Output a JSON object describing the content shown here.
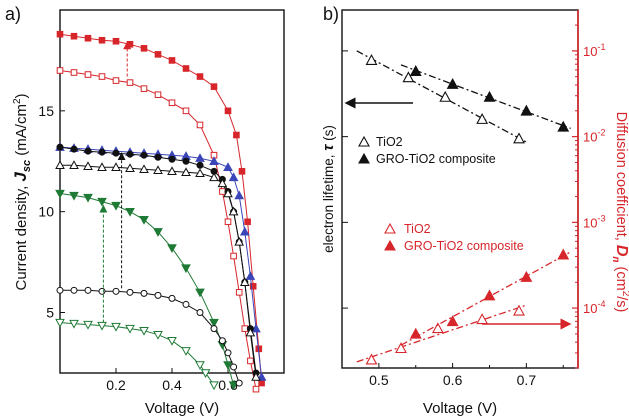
{
  "panel_a": {
    "tag": "a)",
    "ylabel_pre": "Current density, ",
    "ylabel_sym": "J",
    "ylabel_sub": "sc",
    "ylabel_unit": " (mA/cm",
    "ylabel_sup": "2",
    "ylabel_end": ")",
    "xlabel": "Voltage (V)"
  },
  "panel_b": {
    "tag": "b)",
    "ylabel_left_pre": "electron lifetime, ",
    "ylabel_left_sym": "τ",
    "ylabel_left_unit": " (s)",
    "ylabel_right_pre": "Diffusion coefficient, ",
    "ylabel_right_sym": "D",
    "ylabel_right_sub": "n",
    "ylabel_right_unit": " (cm",
    "ylabel_right_sup": "2",
    "ylabel_right_end": "/s)",
    "xlabel": "Voltage (V)",
    "legend_lifetime": [
      "TiO2",
      "GRO-TiO2 composite"
    ],
    "legend_diffusion": [
      "TiO2",
      "GRO-TiO2 composite"
    ]
  },
  "colors": {
    "red": "#d7262b",
    "blue": "#3a45b8",
    "green": "#1e7a35",
    "black": "#111111",
    "right_axis": "#d7262b"
  },
  "chart_data": [
    {
      "type": "line",
      "panel": "a",
      "xlabel": "Voltage (V)",
      "ylabel": "Current density, Jsc (mA/cm2)",
      "xlim": [
        0,
        0.8
      ],
      "ylim": [
        2,
        20
      ],
      "xticks": [
        0.2,
        0.4,
        0.6
      ],
      "yticks": [
        5,
        10,
        15
      ],
      "series": [
        {
          "color": "red",
          "marker": "square",
          "filled": true,
          "x": [
            0.0,
            0.05,
            0.1,
            0.15,
            0.2,
            0.25,
            0.3,
            0.35,
            0.4,
            0.45,
            0.5,
            0.55,
            0.6,
            0.63,
            0.65,
            0.67,
            0.69,
            0.71,
            0.72
          ],
          "y": [
            18.8,
            18.7,
            18.6,
            18.5,
            18.45,
            18.3,
            18.1,
            17.8,
            17.5,
            17.1,
            16.7,
            16.2,
            15.0,
            13.8,
            12.0,
            9.5,
            6.3,
            3.2,
            1.5
          ]
        },
        {
          "color": "red",
          "marker": "square",
          "filled": false,
          "x": [
            0.0,
            0.05,
            0.1,
            0.15,
            0.2,
            0.25,
            0.3,
            0.35,
            0.4,
            0.45,
            0.5,
            0.55,
            0.58,
            0.6,
            0.62,
            0.64,
            0.66,
            0.68,
            0.7
          ],
          "y": [
            17.0,
            16.9,
            16.8,
            16.7,
            16.5,
            16.4,
            16.1,
            15.8,
            15.4,
            15.0,
            14.3,
            12.8,
            11.0,
            9.5,
            7.8,
            6.0,
            4.2,
            2.6,
            1.2
          ]
        },
        {
          "color": "blue",
          "marker": "triangle-up",
          "filled": true,
          "x": [
            0.0,
            0.05,
            0.1,
            0.15,
            0.2,
            0.25,
            0.3,
            0.35,
            0.4,
            0.45,
            0.5,
            0.55,
            0.6,
            0.62,
            0.64,
            0.66,
            0.68,
            0.7,
            0.72
          ],
          "y": [
            13.2,
            13.15,
            13.1,
            13.05,
            13.0,
            12.95,
            12.9,
            12.85,
            12.8,
            12.75,
            12.65,
            12.5,
            12.2,
            11.7,
            10.8,
            9.0,
            6.8,
            4.2,
            1.8
          ]
        },
        {
          "color": "black",
          "marker": "circle",
          "filled": true,
          "x": [
            0.0,
            0.05,
            0.1,
            0.15,
            0.2,
            0.25,
            0.3,
            0.35,
            0.4,
            0.45,
            0.5,
            0.55,
            0.58,
            0.6,
            0.62,
            0.64,
            0.66,
            0.68,
            0.7
          ],
          "y": [
            13.2,
            13.1,
            13.0,
            12.95,
            12.9,
            12.85,
            12.8,
            12.7,
            12.6,
            12.5,
            12.3,
            12.0,
            11.6,
            11.0,
            10.0,
            8.5,
            6.5,
            4.2,
            2.0
          ]
        },
        {
          "color": "black",
          "marker": "triangle-up",
          "filled": false,
          "x": [
            0.0,
            0.05,
            0.1,
            0.15,
            0.2,
            0.25,
            0.3,
            0.35,
            0.4,
            0.45,
            0.5,
            0.55,
            0.58,
            0.6,
            0.62,
            0.64,
            0.66,
            0.68,
            0.7
          ],
          "y": [
            12.3,
            12.3,
            12.25,
            12.2,
            12.2,
            12.15,
            12.1,
            12.05,
            12.0,
            11.95,
            11.9,
            11.7,
            11.4,
            10.9,
            10.0,
            8.5,
            6.5,
            4.0,
            1.8
          ]
        },
        {
          "color": "green",
          "marker": "triangle-down",
          "filled": true,
          "x": [
            0.0,
            0.05,
            0.1,
            0.15,
            0.2,
            0.25,
            0.3,
            0.35,
            0.4,
            0.45,
            0.5,
            0.55,
            0.58,
            0.6,
            0.62
          ],
          "y": [
            10.9,
            10.8,
            10.7,
            10.5,
            10.3,
            10.0,
            9.6,
            9.0,
            8.2,
            7.2,
            6.0,
            4.5,
            3.4,
            2.4,
            1.4
          ]
        },
        {
          "color": "black",
          "marker": "circle",
          "filled": false,
          "x": [
            0.0,
            0.05,
            0.1,
            0.15,
            0.2,
            0.25,
            0.3,
            0.35,
            0.4,
            0.45,
            0.5,
            0.55,
            0.58,
            0.6,
            0.62,
            0.64
          ],
          "y": [
            6.1,
            6.1,
            6.1,
            6.05,
            6.05,
            6.0,
            5.95,
            5.85,
            5.7,
            5.4,
            5.0,
            4.2,
            3.6,
            3.0,
            2.3,
            1.5
          ]
        },
        {
          "color": "green",
          "marker": "triangle-down",
          "filled": false,
          "x": [
            0.0,
            0.05,
            0.1,
            0.15,
            0.2,
            0.25,
            0.3,
            0.35,
            0.4,
            0.45,
            0.5,
            0.52,
            0.55
          ],
          "y": [
            4.5,
            4.45,
            4.4,
            4.35,
            4.3,
            4.2,
            4.1,
            3.9,
            3.6,
            3.1,
            2.4,
            2.0,
            1.4
          ]
        }
      ],
      "arrows": [
        {
          "x": 0.24,
          "from": 16.7,
          "to": 18.4,
          "color": "red"
        },
        {
          "x": 0.22,
          "from": 6.2,
          "to": 12.9,
          "color": "black"
        },
        {
          "x": 0.155,
          "from": 4.5,
          "to": 10.3,
          "color": "green"
        }
      ]
    },
    {
      "type": "scatter",
      "panel": "b",
      "xlabel": "Voltage (V)",
      "xlim": [
        0.45,
        0.77
      ],
      "xticks": [
        0.5,
        0.6,
        0.7
      ],
      "left_axis": {
        "label": "electron lifetime, τ (s)",
        "scale": "log",
        "ticks": []
      },
      "right_axis": {
        "label": "Diffusion coefficient, Dn (cm2/s)",
        "scale": "log",
        "ylim": [
          2e-05,
          0.3
        ],
        "tick_labels": [
          "10-4",
          "10-3",
          "10-2",
          "10-1"
        ]
      },
      "series": [
        {
          "name": "TiO2",
          "axis": "left",
          "color": "black",
          "marker": "triangle-up",
          "filled": false,
          "x": [
            0.49,
            0.54,
            0.59,
            0.64,
            0.69
          ],
          "y": [
            0.078,
            0.049,
            0.029,
            0.016,
            0.0095
          ]
        },
        {
          "name": "GRO-TiO2 composite",
          "axis": "left",
          "color": "black",
          "marker": "triangle-up",
          "filled": true,
          "x": [
            0.55,
            0.6,
            0.65,
            0.7,
            0.75
          ],
          "y": [
            0.058,
            0.041,
            0.029,
            0.02,
            0.013
          ]
        },
        {
          "name": "TiO2",
          "axis": "right",
          "color": "red",
          "marker": "triangle-up",
          "filled": false,
          "x": [
            0.49,
            0.53,
            0.58,
            0.64,
            0.69
          ],
          "y": [
            2.5e-05,
            3.4e-05,
            5.8e-05,
            7.4e-05,
            9.3e-05
          ]
        },
        {
          "name": "GRO-TiO2 composite",
          "axis": "right",
          "color": "red",
          "marker": "triangle-up",
          "filled": true,
          "x": [
            0.55,
            0.6,
            0.65,
            0.7,
            0.75
          ],
          "y": [
            5e-05,
            7e-05,
            0.00014,
            0.00023,
            0.00042
          ]
        }
      ],
      "annotations": [
        {
          "type": "arrow",
          "direction": "left",
          "points_to": "left_axis"
        },
        {
          "type": "arrow",
          "direction": "right",
          "points_to": "right_axis"
        }
      ]
    }
  ]
}
